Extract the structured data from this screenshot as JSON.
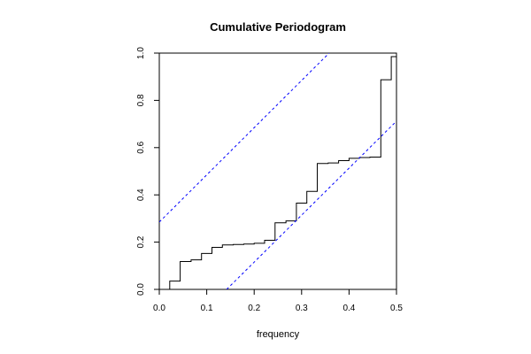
{
  "chart_data": {
    "type": "line",
    "title": "Cumulative Periodogram",
    "xlabel": "frequency",
    "ylabel": "",
    "xlim": [
      0.0,
      0.5
    ],
    "ylim": [
      0.0,
      1.0
    ],
    "x_ticks": [
      0.0,
      0.1,
      0.2,
      0.3,
      0.4,
      0.5
    ],
    "x_tick_labels": [
      "0.0",
      "0.1",
      "0.2",
      "0.3",
      "0.4",
      "0.5"
    ],
    "y_ticks": [
      0.0,
      0.2,
      0.4,
      0.6,
      0.8,
      1.0
    ],
    "y_tick_labels": [
      "0.0",
      "0.2",
      "0.4",
      "0.6",
      "0.8",
      "1.0"
    ],
    "grid": false,
    "series": [
      {
        "style": "step",
        "color": "#000000",
        "x": [
          0.0,
          0.022,
          0.044,
          0.067,
          0.089,
          0.111,
          0.133,
          0.156,
          0.178,
          0.2,
          0.222,
          0.244,
          0.267,
          0.289,
          0.311,
          0.333,
          0.356,
          0.378,
          0.4,
          0.422,
          0.444,
          0.467,
          0.489,
          0.5
        ],
        "y": [
          0.0,
          0.035,
          0.118,
          0.125,
          0.152,
          0.178,
          0.188,
          0.19,
          0.192,
          0.195,
          0.208,
          0.282,
          0.29,
          0.365,
          0.415,
          0.533,
          0.535,
          0.545,
          0.555,
          0.558,
          0.56,
          0.887,
          0.985,
          1.0
        ]
      },
      {
        "style": "dashed",
        "color": "#0000ff",
        "x": [
          0.0,
          0.358
        ],
        "y": [
          0.285,
          1.0
        ]
      },
      {
        "style": "dashed",
        "color": "#0000ff",
        "x": [
          0.142,
          0.5
        ],
        "y": [
          0.0,
          0.712
        ]
      }
    ]
  }
}
